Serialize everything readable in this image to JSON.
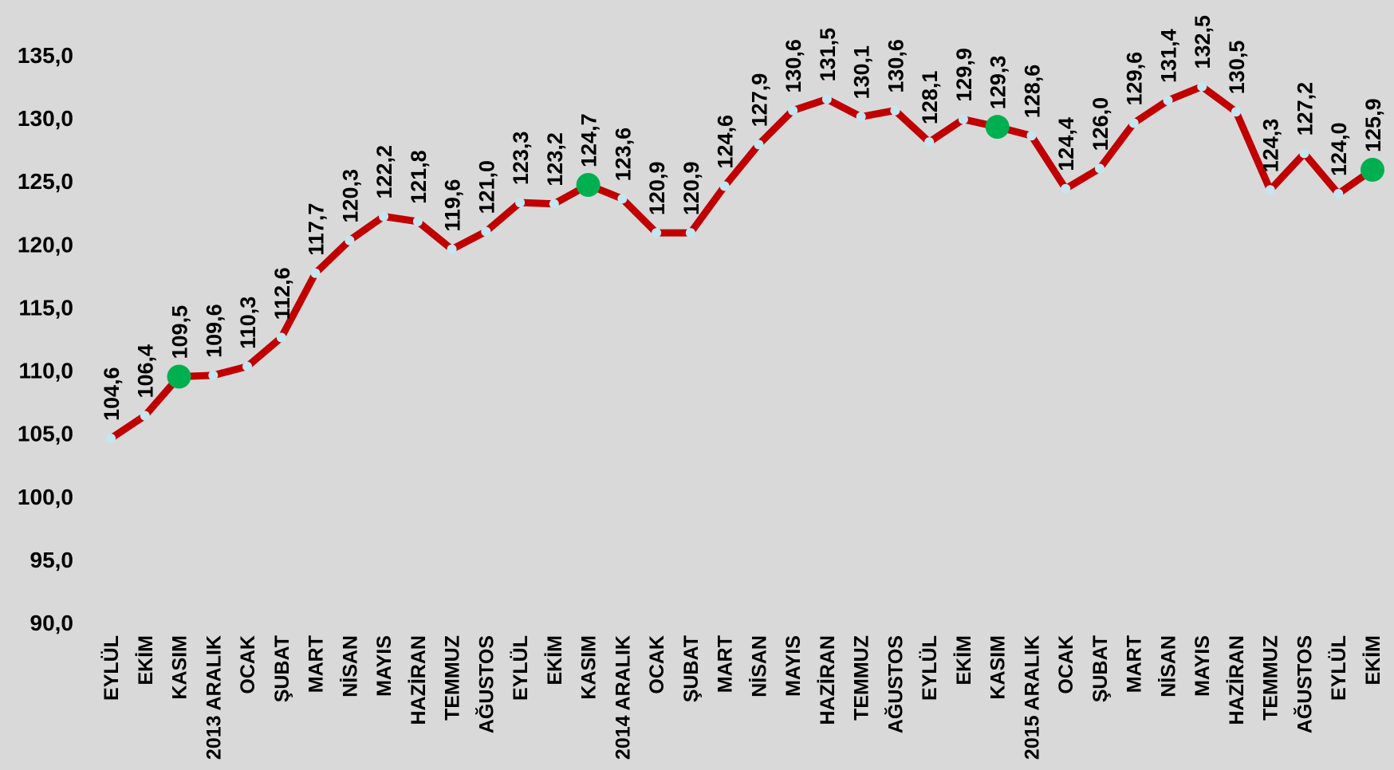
{
  "chart_data": {
    "type": "line",
    "categories": [
      "EYLÜL",
      "EKİM",
      "KASIM",
      "2013 ARALIK",
      "OCAK",
      "ŞUBAT",
      "MART",
      "NİSAN",
      "MAYIS",
      "HAZİRAN",
      "TEMMUZ",
      "AĞUSTOS",
      "EYLÜL",
      "EKİM",
      "KASIM",
      "2014 ARALIK",
      "OCAK",
      "ŞUBAT",
      "MART",
      "NİSAN",
      "MAYIS",
      "HAZİRAN",
      "TEMMUZ",
      "AĞUSTOS",
      "EYLÜL",
      "EKİM",
      "KASIM",
      "2015 ARALIK",
      "OCAK",
      "ŞUBAT",
      "MART",
      "NİSAN",
      "MAYIS",
      "HAZİRAN",
      "TEMMUZ",
      "AĞUSTOS",
      "EYLÜL",
      "EKİM"
    ],
    "series": [
      {
        "values": [
          104.6,
          106.4,
          109.5,
          109.6,
          110.3,
          112.6,
          117.7,
          120.3,
          122.2,
          121.8,
          119.6,
          121.0,
          123.3,
          123.2,
          124.7,
          123.6,
          120.9,
          120.9,
          124.6,
          127.9,
          130.6,
          131.5,
          130.1,
          130.6,
          128.1,
          129.9,
          129.3,
          128.6,
          124.4,
          126.0,
          129.6,
          131.4,
          132.5,
          130.5,
          124.3,
          127.2,
          124.0,
          125.9
        ],
        "data_labels": [
          "104,6",
          "106,4",
          "109,5",
          "109,6",
          "110,3",
          "112,6",
          "117,7",
          "120,3",
          "122,2",
          "121,8",
          "119,6",
          "121,0",
          "123,3",
          "123,2",
          "124,7",
          "123,6",
          "120,9",
          "120,9",
          "124,6",
          "127,9",
          "130,6",
          "131,5",
          "130,1",
          "130,6",
          "128,1",
          "129,9",
          "129,3",
          "128,6",
          "124,4",
          "126,0",
          "129,6",
          "131,4",
          "132,5",
          "130,5",
          "124,3",
          "127,2",
          "124,0",
          "125,9"
        ],
        "highlighted": [
          2,
          14,
          26,
          37
        ]
      }
    ],
    "yticks": [
      "90,0",
      "95,0",
      "100,0",
      "105,0",
      "110,0",
      "115,0",
      "120,0",
      "125,0",
      "130,0",
      "135,0"
    ],
    "ylim": [
      90,
      135
    ],
    "title": "",
    "xlabel": "",
    "ylabel": "",
    "grid": false,
    "colors": {
      "line": "#c00000",
      "marker": "#c5e6f0",
      "highlight": "#00b050",
      "background": "#d9d9d9"
    }
  }
}
